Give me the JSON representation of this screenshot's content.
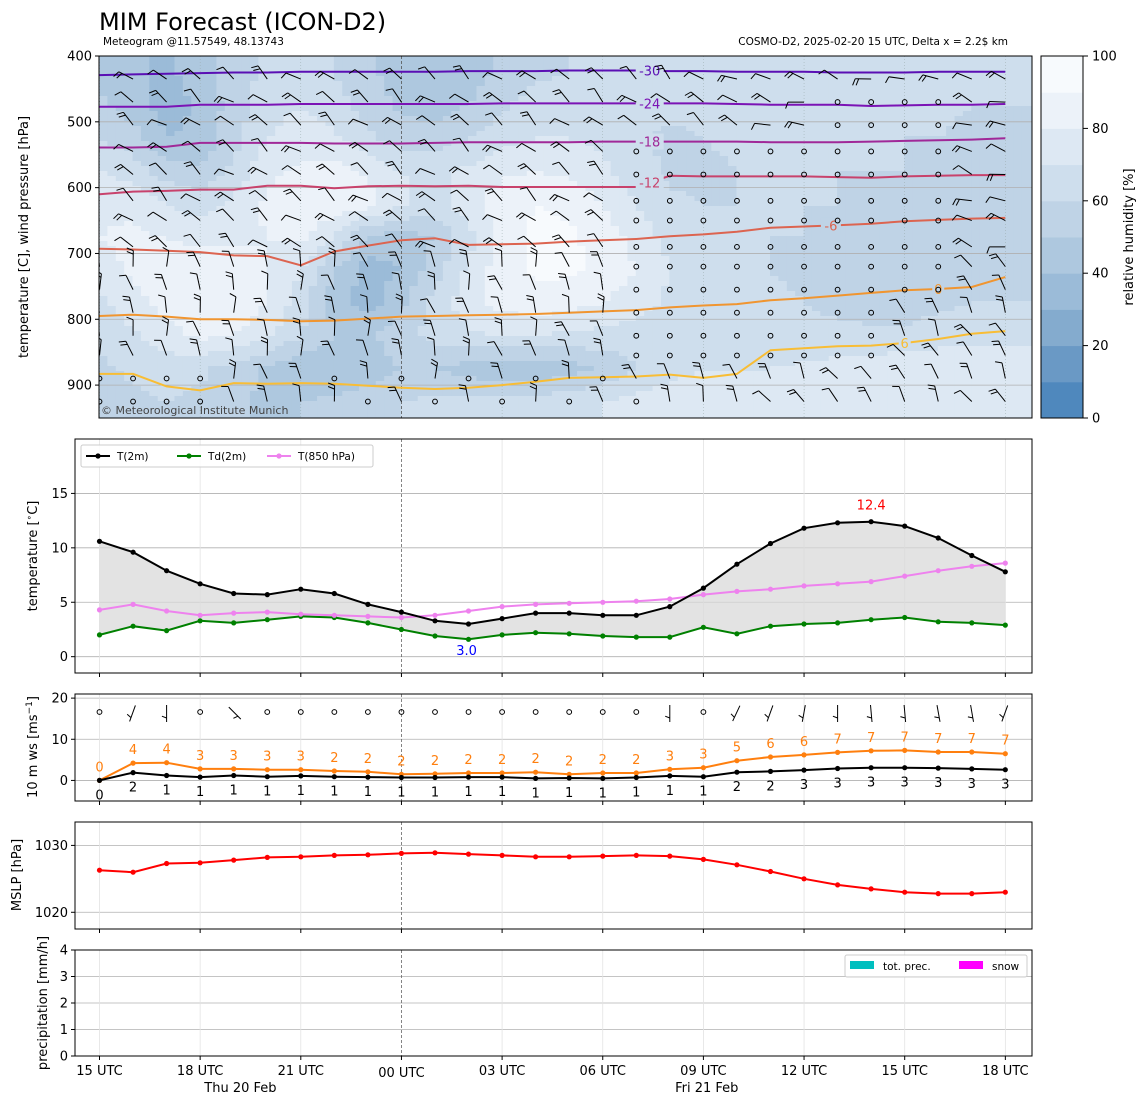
{
  "header": {
    "title": "MIM Forecast (ICON-D2)",
    "subtitle_left": "Meteogram @11.57549, 48.13743",
    "subtitle_right": "COSMO-D2, 2025-02-20 15 UTC, Delta x = 2.2$ km",
    "copyright": "© Meteorological Institute Munich"
  },
  "x_axis": {
    "hour_offsets": [
      0,
      3,
      6,
      9,
      12,
      15,
      18,
      21,
      24,
      27
    ],
    "tick_labels": [
      "15 UTC",
      "18 UTC",
      "21 UTC",
      "00 UTC",
      "03 UTC",
      "06 UTC",
      "09 UTC",
      "12 UTC",
      "15 UTC",
      "18 UTC"
    ],
    "day_labels": [
      {
        "hour": 4.2,
        "text": "Thu 20 Feb"
      },
      {
        "hour": 18.1,
        "text": "Fri 21 Feb"
      }
    ],
    "day_boundary_hour": 9
  },
  "colors": {
    "rh_scale": [
      "#4f88bd",
      "#6a99c5",
      "#84abce",
      "#9bbbd8",
      "#aec8df",
      "#bfd3e6",
      "#cedeed",
      "#dde8f3",
      "#ecf2f9",
      "#f7fafd"
    ],
    "temp_line": "#000000",
    "dew_line": "#008000",
    "t850_line": "#ee82ee",
    "gust_line": "#ff7f0e",
    "wind_line": "#000000",
    "mslp_line": "#ff0000",
    "precip": "#00bfbf",
    "snow": "#ff00ff",
    "max_label": "#ff0000",
    "min_label": "#0000ff"
  },
  "chart_data": [
    {
      "type": "heatmap",
      "name": "upper-air cross-section",
      "ylabel": "temperature [C], wind pressure [hPa]",
      "ylim": [
        950,
        400
      ],
      "yticks": [
        400,
        500,
        600,
        700,
        800,
        900
      ],
      "colorbar": {
        "label": "relative humidity [%]",
        "range": [
          0,
          100
        ],
        "ticks": [
          0,
          20,
          40,
          60,
          80,
          100
        ]
      },
      "pressure_levels": [
        425,
        475,
        525,
        575,
        625,
        675,
        725,
        775,
        825,
        875,
        925
      ],
      "rh_grid": [
        [
          48,
          42,
          38,
          45,
          55,
          62,
          66,
          60,
          52,
          46,
          40,
          45,
          52,
          58,
          60,
          60,
          62,
          64,
          66,
          66,
          65,
          64,
          62,
          62,
          62,
          62,
          60,
          60
        ],
        [
          52,
          45,
          35,
          42,
          55,
          66,
          70,
          65,
          55,
          48,
          45,
          50,
          58,
          65,
          66,
          65,
          62,
          62,
          64,
          64,
          65,
          64,
          62,
          62,
          62,
          62,
          60,
          60
        ],
        [
          60,
          55,
          40,
          42,
          56,
          70,
          74,
          72,
          62,
          55,
          55,
          60,
          66,
          70,
          70,
          68,
          62,
          58,
          60,
          62,
          62,
          62,
          60,
          60,
          60,
          60,
          58,
          58
        ],
        [
          70,
          65,
          55,
          52,
          62,
          78,
          82,
          84,
          78,
          70,
          68,
          72,
          78,
          80,
          78,
          72,
          64,
          58,
          58,
          60,
          60,
          60,
          60,
          60,
          60,
          58,
          58,
          58
        ],
        [
          78,
          78,
          70,
          65,
          72,
          82,
          86,
          88,
          84,
          72,
          66,
          76,
          86,
          90,
          88,
          80,
          70,
          62,
          60,
          60,
          60,
          60,
          60,
          58,
          58,
          58,
          58,
          58
        ],
        [
          80,
          82,
          80,
          76,
          78,
          80,
          82,
          70,
          48,
          45,
          50,
          66,
          84,
          92,
          92,
          86,
          76,
          66,
          62,
          60,
          60,
          60,
          58,
          58,
          58,
          58,
          58,
          58
        ],
        [
          76,
          82,
          86,
          88,
          86,
          80,
          70,
          50,
          35,
          40,
          56,
          72,
          86,
          92,
          92,
          88,
          80,
          70,
          64,
          60,
          60,
          58,
          56,
          56,
          56,
          58,
          58,
          60
        ],
        [
          68,
          76,
          84,
          90,
          88,
          80,
          64,
          45,
          35,
          48,
          64,
          76,
          84,
          86,
          84,
          80,
          74,
          68,
          64,
          62,
          62,
          60,
          58,
          56,
          56,
          58,
          60,
          60
        ],
        [
          62,
          68,
          76,
          82,
          80,
          72,
          60,
          50,
          48,
          56,
          64,
          68,
          70,
          70,
          68,
          66,
          66,
          66,
          66,
          64,
          62,
          62,
          62,
          62,
          62,
          64,
          66,
          66
        ],
        [
          58,
          62,
          64,
          62,
          56,
          48,
          42,
          40,
          44,
          50,
          50,
          46,
          42,
          42,
          46,
          52,
          60,
          66,
          70,
          70,
          70,
          72,
          74,
          76,
          78,
          80,
          80,
          80
        ],
        [
          56,
          58,
          60,
          58,
          52,
          48,
          50,
          52,
          56,
          60,
          62,
          62,
          62,
          64,
          66,
          70,
          74,
          76,
          76,
          76,
          74,
          74,
          74,
          74,
          74,
          74,
          74,
          74
        ]
      ],
      "isotherms": [
        {
          "label": "-30",
          "label_hour": 16.4,
          "pressure": [
            429,
            428,
            427,
            426,
            425,
            425,
            424,
            424,
            424,
            424,
            424,
            423,
            423,
            423,
            422,
            422,
            422,
            423,
            423,
            424,
            424,
            424,
            425,
            425,
            425,
            424,
            424,
            424
          ],
          "color": "#5a0fb4"
        },
        {
          "label": "-24",
          "label_hour": 16.4,
          "pressure": [
            477,
            477,
            477,
            474,
            474,
            474,
            473,
            473,
            473,
            473,
            473,
            473,
            472,
            472,
            472,
            472,
            472,
            472,
            472,
            473,
            474,
            474,
            474,
            476,
            475,
            474,
            474,
            473
          ],
          "color": "#7b13b5"
        },
        {
          "label": "-18",
          "label_hour": 16.4,
          "pressure": [
            539,
            539,
            538,
            532,
            532,
            532,
            532,
            533,
            533,
            533,
            532,
            531,
            531,
            531,
            531,
            530,
            530,
            530,
            530,
            530,
            531,
            531,
            531,
            530,
            529,
            528,
            527,
            525
          ],
          "color": "#a02898"
        },
        {
          "label": "-12",
          "label_hour": 16.4,
          "pressure": [
            610,
            606,
            605,
            603,
            603,
            597,
            597,
            601,
            598,
            597,
            598,
            597,
            599,
            599,
            599,
            599,
            599,
            582,
            583,
            583,
            583,
            583,
            584,
            585,
            583,
            582,
            581,
            581
          ],
          "color": "#c8426c"
        },
        {
          "label": "-6",
          "label_hour": 21.8,
          "pressure": [
            693,
            694,
            696,
            698,
            703,
            704,
            718,
            697,
            688,
            680,
            677,
            687,
            686,
            685,
            682,
            680,
            678,
            674,
            671,
            667,
            661,
            659,
            657,
            655,
            651,
            649,
            647,
            646
          ],
          "color": "#dc6450"
        },
        {
          "label": "0",
          "label_hour": 25,
          "pressure": [
            795,
            793,
            796,
            800,
            800,
            801,
            803,
            802,
            799,
            796,
            795,
            794,
            793,
            792,
            790,
            788,
            786,
            782,
            779,
            777,
            771,
            768,
            764,
            760,
            756,
            754,
            751,
            736
          ],
          "color": "#f09530"
        },
        {
          "label": "6",
          "label_hour": 24,
          "pressure": [
            883,
            883,
            902,
            908,
            897,
            898,
            897,
            898,
            901,
            904,
            906,
            904,
            900,
            895,
            889,
            888,
            887,
            884,
            889,
            883,
            847,
            844,
            841,
            840,
            836,
            830,
            822,
            818
          ],
          "color": "#f8bd35"
        }
      ]
    },
    {
      "type": "line",
      "name": "temperature",
      "ylabel": "temperature [$^\\circ$C]",
      "ylim": [
        -1.5,
        20
      ],
      "yticks": [
        0,
        5,
        10,
        15
      ],
      "x_hours": [
        0,
        1,
        2,
        3,
        4,
        5,
        6,
        7,
        8,
        9,
        10,
        11,
        12,
        13,
        14,
        15,
        16,
        17,
        18,
        19,
        20,
        21,
        22,
        23,
        24,
        25,
        26,
        27
      ],
      "legend_location": "upper-left",
      "series": [
        {
          "name": "T(2m)",
          "values": [
            10.6,
            9.6,
            7.9,
            6.7,
            5.8,
            5.7,
            6.2,
            5.8,
            4.8,
            4.1,
            3.3,
            3.0,
            3.5,
            4.0,
            4.0,
            3.8,
            3.8,
            4.6,
            6.3,
            8.5,
            10.4,
            11.8,
            12.3,
            12.4,
            12.0,
            10.9,
            9.3,
            7.8
          ]
        },
        {
          "name": "Td(2m)",
          "values": [
            2.0,
            2.8,
            2.4,
            3.3,
            3.1,
            3.4,
            3.7,
            3.6,
            3.1,
            2.5,
            1.9,
            1.6,
            2.0,
            2.2,
            2.1,
            1.9,
            1.8,
            1.8,
            2.7,
            2.1,
            2.8,
            3.0,
            3.1,
            3.4,
            3.6,
            3.2,
            3.1,
            2.9
          ]
        },
        {
          "name": "T(850 hPa)",
          "values": [
            4.3,
            4.8,
            4.2,
            3.8,
            4.0,
            4.1,
            3.9,
            3.8,
            3.7,
            3.6,
            3.8,
            4.2,
            4.6,
            4.8,
            4.9,
            5.0,
            5.1,
            5.3,
            5.7,
            6.0,
            6.2,
            6.5,
            6.7,
            6.9,
            7.4,
            7.9,
            8.3,
            8.6
          ]
        }
      ],
      "max_annotation": {
        "hour": 23,
        "value": 12.4,
        "text": "12.4"
      },
      "min_annotation": {
        "hour": 11,
        "value": 3.0,
        "text": "3.0"
      }
    },
    {
      "type": "line",
      "name": "wind",
      "ylabel": "10 m ws [ms$^{-1}$]",
      "ylim": [
        -5,
        21
      ],
      "yticks": [
        0,
        10,
        20
      ],
      "x_hours": [
        0,
        1,
        2,
        3,
        4,
        5,
        6,
        7,
        8,
        9,
        10,
        11,
        12,
        13,
        14,
        15,
        16,
        17,
        18,
        19,
        20,
        21,
        22,
        23,
        24,
        25,
        26,
        27
      ],
      "series": [
        {
          "name": "gust",
          "values": [
            0,
            4.2,
            4.3,
            2.8,
            2.8,
            2.6,
            2.6,
            2.3,
            2.1,
            1.5,
            1.6,
            1.8,
            1.8,
            2.0,
            1.5,
            1.8,
            1.8,
            2.7,
            3.1,
            4.8,
            5.7,
            6.2,
            6.8,
            7.2,
            7.3,
            6.9,
            6.9,
            6.5
          ]
        },
        {
          "name": "wind speed",
          "values": [
            0,
            1.9,
            1.2,
            0.8,
            1.2,
            0.9,
            1.1,
            0.9,
            0.8,
            0.7,
            0.7,
            0.8,
            0.8,
            0.5,
            0.6,
            0.5,
            0.7,
            1.1,
            0.9,
            2.0,
            2.2,
            2.5,
            2.9,
            3.1,
            3.1,
            3.0,
            2.8,
            2.6
          ]
        }
      ],
      "gust_labels": [
        "0",
        "4",
        "4",
        "3",
        "3",
        "3",
        "3",
        "2",
        "2",
        "2",
        "2",
        "2",
        "2",
        "2",
        "2",
        "2",
        "2",
        "3",
        "3",
        "5",
        "6",
        "6",
        "7",
        "7",
        "7",
        "7",
        "7",
        "7"
      ],
      "speed_labels": [
        "0",
        "2",
        "1",
        "1",
        "1",
        "1",
        "1",
        "1",
        "1",
        "1",
        "1",
        "1",
        "1",
        "1",
        "1",
        "1",
        "1",
        "1",
        "1",
        "2",
        "2",
        "3",
        "3",
        "3",
        "3",
        "3",
        "3",
        "3"
      ],
      "barb_direction_deg": [
        0,
        290,
        270,
        0,
        225,
        0,
        0,
        0,
        0,
        0,
        0,
        0,
        0,
        0,
        0,
        0,
        0,
        270,
        0,
        295,
        290,
        280,
        270,
        265,
        265,
        260,
        260,
        290
      ]
    },
    {
      "type": "line",
      "name": "mslp",
      "ylabel": "MSLP [hPa]",
      "ylim": [
        1017.5,
        1033.5
      ],
      "yticks": [
        1020,
        1030
      ],
      "x_hours": [
        0,
        1,
        2,
        3,
        4,
        5,
        6,
        7,
        8,
        9,
        10,
        11,
        12,
        13,
        14,
        15,
        16,
        17,
        18,
        19,
        20,
        21,
        22,
        23,
        24,
        25,
        26,
        27
      ],
      "series": [
        {
          "name": "MSLP",
          "values": [
            1026.3,
            1026.0,
            1027.3,
            1027.4,
            1027.8,
            1028.2,
            1028.3,
            1028.5,
            1028.6,
            1028.8,
            1028.9,
            1028.7,
            1028.5,
            1028.3,
            1028.3,
            1028.4,
            1028.5,
            1028.4,
            1027.9,
            1027.1,
            1026.1,
            1025.0,
            1024.1,
            1023.5,
            1023.0,
            1022.8,
            1022.8,
            1023.0
          ]
        }
      ]
    },
    {
      "type": "bar",
      "name": "precipitation",
      "ylabel": "precipitation [mm/h]",
      "ylim": [
        0,
        4
      ],
      "yticks": [
        0,
        1,
        2,
        3,
        4
      ],
      "legend_location": "upper-right",
      "series": [
        {
          "name": "tot. prec.",
          "values": []
        },
        {
          "name": "snow",
          "values": []
        }
      ]
    }
  ]
}
